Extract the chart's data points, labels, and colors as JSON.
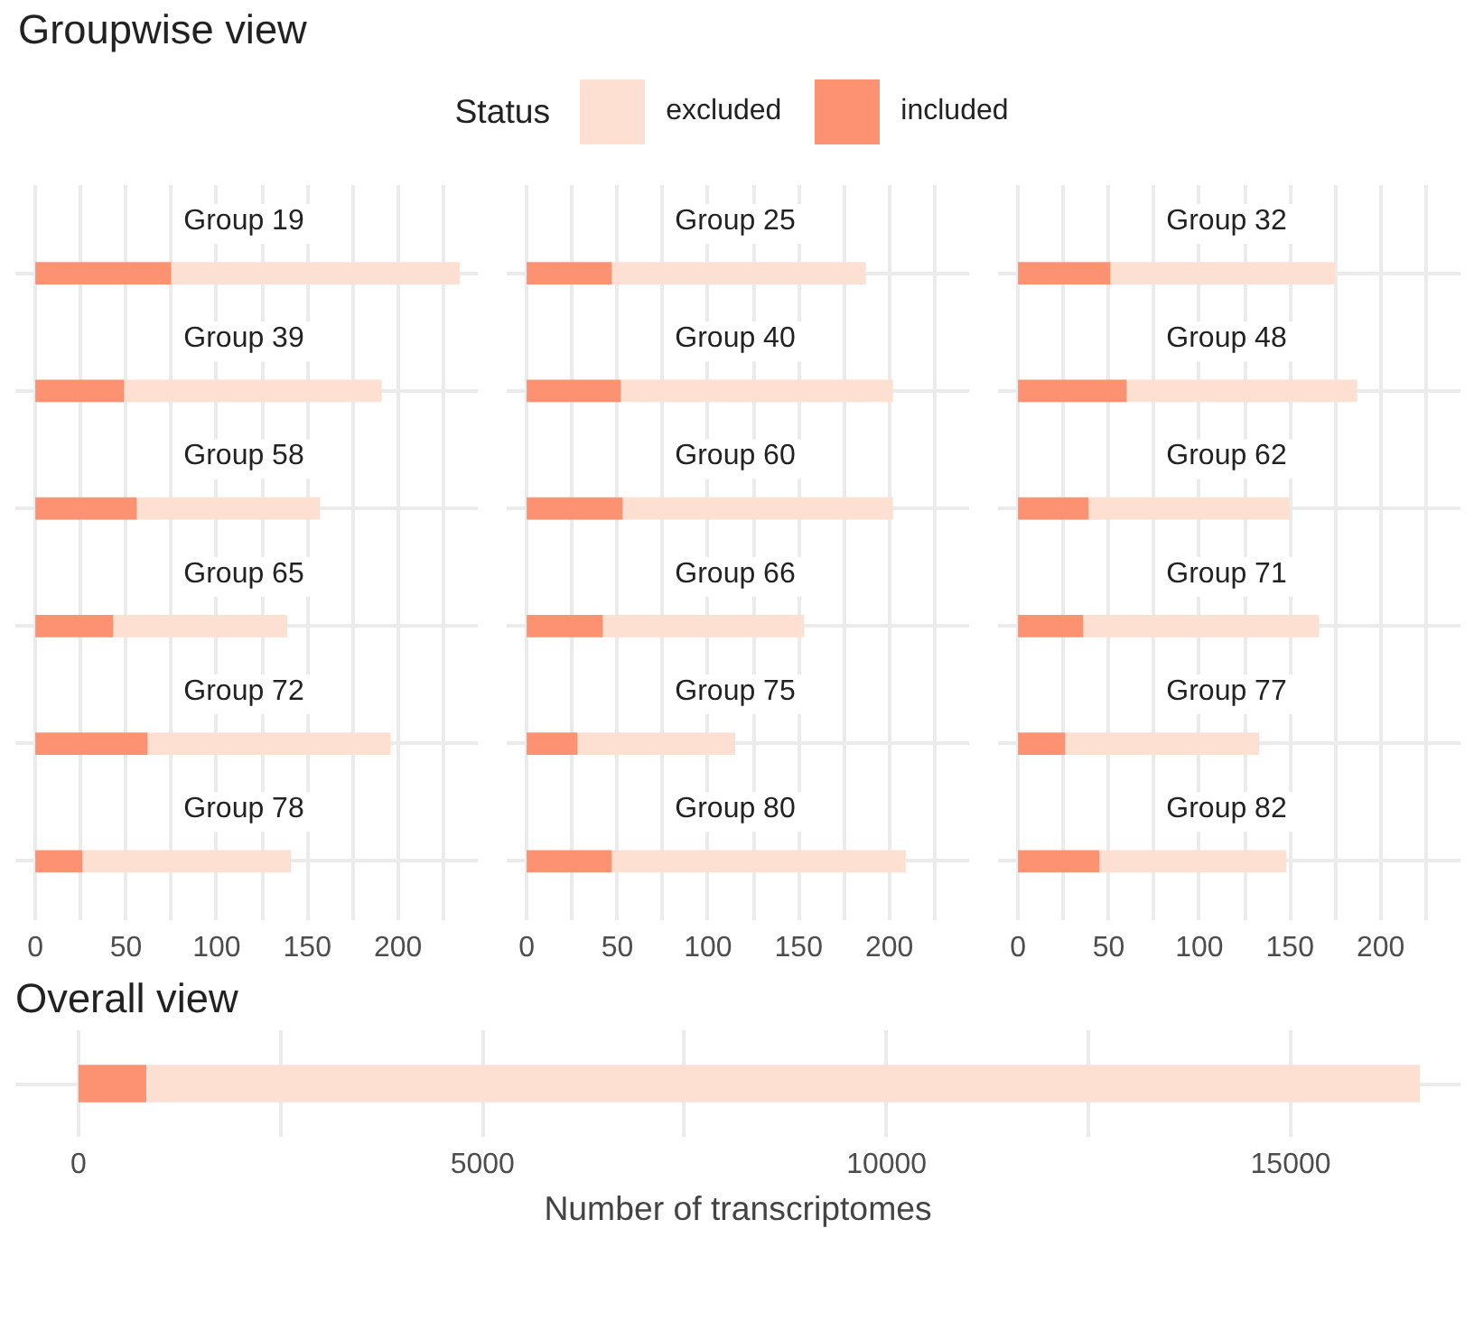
{
  "chart_data": [
    {
      "type": "bar",
      "annotations": [
        "Groupwise view"
      ],
      "legend_title": "Status",
      "legend": "top",
      "orientation": "horizontal",
      "stacked": true,
      "categories": [
        "Group 19",
        "Group 39",
        "Group 58",
        "Group 65",
        "Group 72",
        "Group 78"
      ],
      "series": [
        {
          "name": "included",
          "color": "#fc9272",
          "values": [
            75,
            49,
            56,
            43,
            62,
            26
          ]
        },
        {
          "name": "excluded",
          "color": "#fee0d2",
          "values": [
            159,
            142,
            101,
            96,
            134,
            115
          ]
        }
      ],
      "xlim": [
        -11,
        244
      ],
      "xticks": [
        0,
        {
          "value": 25,
          "label": null
        },
        50,
        {
          "value": 75,
          "label": null
        },
        100,
        {
          "value": 125,
          "label": null
        },
        150,
        {
          "value": 175,
          "label": null
        },
        200,
        {
          "value": 225,
          "label": null
        }
      ],
      "grid": true
    },
    {
      "type": "bar",
      "orientation": "horizontal",
      "stacked": true,
      "categories": [
        "Group 25",
        "Group 40",
        "Group 60",
        "Group 66",
        "Group 75",
        "Group 80"
      ],
      "series": [
        {
          "color": "#fc9272",
          "values": [
            47,
            52,
            53,
            42,
            28,
            47
          ]
        },
        {
          "color": "#fee0d2",
          "values": [
            140,
            150,
            149,
            111,
            87,
            162
          ]
        }
      ],
      "xlim": [
        -11,
        244
      ],
      "xticks": [
        0,
        {
          "value": 25,
          "label": null
        },
        50,
        {
          "value": 75,
          "label": null
        },
        100,
        {
          "value": 125,
          "label": null
        },
        150,
        {
          "value": 175,
          "label": null
        },
        200,
        {
          "value": 225,
          "label": null
        }
      ],
      "grid": true
    },
    {
      "type": "bar",
      "orientation": "horizontal",
      "stacked": true,
      "categories": [
        "Group 32",
        "Group 48",
        "Group 62",
        "Group 71",
        "Group 77",
        "Group 82"
      ],
      "series": [
        {
          "color": "#fc9272",
          "values": [
            51,
            60,
            39,
            36,
            26,
            45
          ]
        },
        {
          "color": "#fee0d2",
          "values": [
            124,
            127,
            111,
            130,
            107,
            103
          ]
        }
      ],
      "xlim": [
        -11,
        244
      ],
      "xticks": [
        0,
        {
          "value": 25,
          "label": null
        },
        50,
        {
          "value": 75,
          "label": null
        },
        100,
        {
          "value": 125,
          "label": null
        },
        150,
        {
          "value": 175,
          "label": null
        },
        200,
        {
          "value": 225,
          "label": null
        }
      ],
      "grid": true
    },
    {
      "type": "bar",
      "title": "Overall view",
      "xlabel": "Number of transcriptomes",
      "orientation": "horizontal",
      "stacked": true,
      "categories": [
        null
      ],
      "series": [
        {
          "color": "#fc9272",
          "values": [
            840
          ]
        },
        {
          "color": "#fee0d2",
          "values": [
            15760
          ]
        }
      ],
      "xlim": [
        -780,
        17100
      ],
      "xticks": [
        0,
        {
          "value": 2500,
          "label": null
        },
        5000,
        {
          "value": 7500,
          "label": null
        },
        10000,
        {
          "value": 12500,
          "label": null
        },
        15000
      ],
      "grid": true,
      "tick_labels": "x"
    }
  ]
}
